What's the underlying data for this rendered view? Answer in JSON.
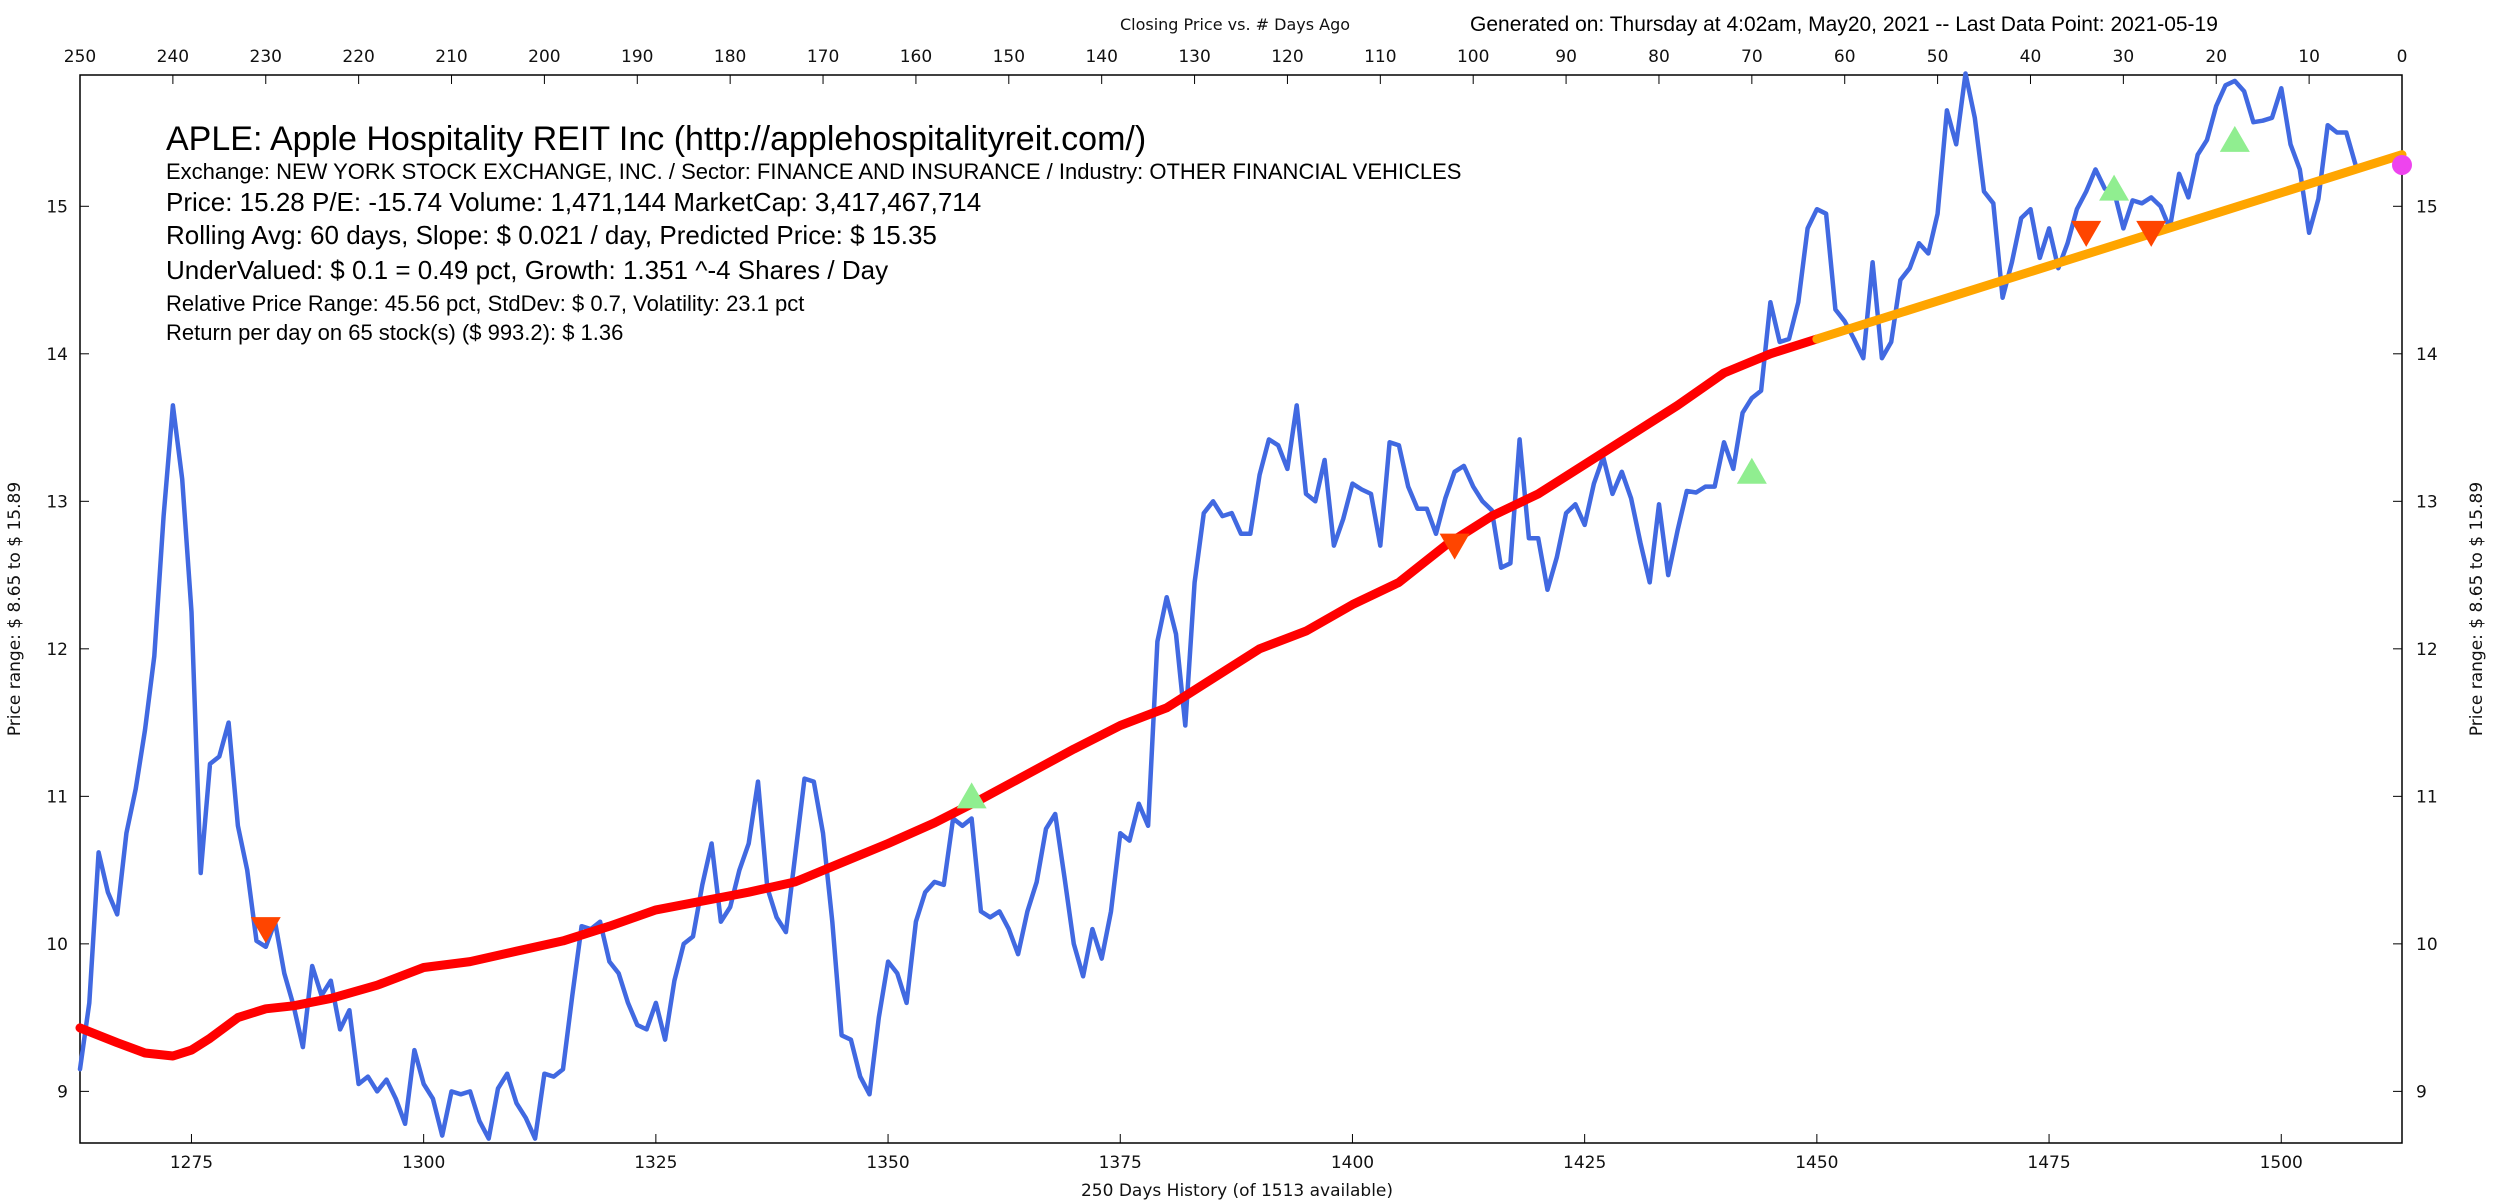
{
  "header": {
    "top_title": "Closing Price vs. # Days Ago",
    "generated": "Generated on:  Thursday at  4:02am, May20, 2021  --  Last Data Point:  2021-05-19"
  },
  "info": {
    "title": "APLE:  Apple Hospitality REIT Inc  (http://applehospitalityreit.com/)",
    "exchange": "Exchange: NEW YORK STOCK EXCHANGE, INC.  /  Sector: FINANCE AND INSURANCE  /  Industry: OTHER FINANCIAL VEHICLES",
    "price": "Price: 15.28  P/E: -15.74 Volume: 1,471,144  MarketCap: 3,417,467,714",
    "rolling": "Rolling Avg: 60 days, Slope: $ 0.021 / day, Predicted Price: $ 15.35",
    "undervalued": "UnderValued: $ 0.1 = 0.49 pct,  Growth: 1.351 ^-4 Shares / Day",
    "range": "Relative Price Range: 45.56 pct, StdDev: $ 0.7, Volatility: 23.1 pct",
    "return": "Return per day on 65 stock(s) ($ 993.2): $ 1.36"
  },
  "axes": {
    "xlabel": "250 Days History (of 1513 available)",
    "ylabel_left": "Price range:  $ 8.65  to  $ 15.89",
    "ylabel_right": "Price range: $ 8.65  to  $ 15.89"
  },
  "colors": {
    "price": "#4169e1",
    "rolling": "#ff0000",
    "projection": "#ffa500",
    "buy": "#90ee90",
    "sell": "#ff4500",
    "current": "#ee44ee"
  },
  "chart_data": {
    "type": "line",
    "title": "Closing Price vs. # Days Ago",
    "xlabel": "250 Days History (of 1513 available)",
    "ylabel": "Price range:  $ 8.65  to  $ 15.89",
    "xlim": [
      1263,
      1513
    ],
    "ylim": [
      8.65,
      15.89
    ],
    "x_ticks": [
      1275,
      1300,
      1325,
      1350,
      1375,
      1400,
      1425,
      1450,
      1475,
      1500
    ],
    "y_ticks": [
      9,
      10,
      11,
      12,
      13,
      14,
      15
    ],
    "top_x_ticks": [
      250,
      240,
      230,
      220,
      210,
      200,
      190,
      180,
      170,
      160,
      150,
      140,
      130,
      120,
      110,
      100,
      90,
      80,
      70,
      60,
      50,
      40,
      30,
      20,
      10,
      0
    ],
    "grid": false,
    "series": [
      {
        "name": "Closing price",
        "style": "line",
        "x_start": 1263,
        "values": [
          9.15,
          9.6,
          10.62,
          10.35,
          10.2,
          10.75,
          11.05,
          11.45,
          11.95,
          12.9,
          13.65,
          13.15,
          12.25,
          10.48,
          11.22,
          11.27,
          11.5,
          10.8,
          10.5,
          10.02,
          9.98,
          10.15,
          9.8,
          9.58,
          9.3,
          9.85,
          9.65,
          9.75,
          9.42,
          9.55,
          9.05,
          9.1,
          9.0,
          9.08,
          8.95,
          8.78,
          9.28,
          9.05,
          8.95,
          8.7,
          9.0,
          8.98,
          9.0,
          8.8,
          8.68,
          9.02,
          9.12,
          8.92,
          8.82,
          8.68,
          9.12,
          9.1,
          9.15,
          9.65,
          10.12,
          10.1,
          10.15,
          9.88,
          9.8,
          9.6,
          9.45,
          9.42,
          9.6,
          9.35,
          9.75,
          10.0,
          10.05,
          10.4,
          10.68,
          10.15,
          10.25,
          10.5,
          10.68,
          11.1,
          10.38,
          10.18,
          10.08,
          10.6,
          11.12,
          11.1,
          10.75,
          10.15,
          9.38,
          9.35,
          9.1,
          8.98,
          9.5,
          9.88,
          9.8,
          9.6,
          10.15,
          10.35,
          10.42,
          10.4,
          10.85,
          10.8,
          10.85,
          10.22,
          10.18,
          10.22,
          10.1,
          9.93,
          10.22,
          10.42,
          10.78,
          10.88,
          10.45,
          10.0,
          9.78,
          10.1,
          9.9,
          10.22,
          10.75,
          10.7,
          10.95,
          10.8,
          12.05,
          12.35,
          12.1,
          11.48,
          12.45,
          12.92,
          13.0,
          12.9,
          12.92,
          12.78,
          12.78,
          13.18,
          13.42,
          13.38,
          13.22,
          13.65,
          13.05,
          13.0,
          13.28,
          12.7,
          12.88,
          13.12,
          13.08,
          13.05,
          12.7,
          13.4,
          13.38,
          13.1,
          12.95,
          12.95,
          12.78,
          13.02,
          13.2,
          13.24,
          13.1,
          13.0,
          12.94,
          12.55,
          12.58,
          13.42,
          12.75,
          12.75,
          12.4,
          12.62,
          12.92,
          12.98,
          12.84,
          13.12,
          13.3,
          13.05,
          13.2,
          13.02,
          12.72,
          12.45,
          12.98,
          12.5,
          12.8,
          13.07,
          13.06,
          13.1,
          13.1,
          13.4,
          13.22,
          13.6,
          13.7,
          13.75,
          14.35,
          14.08,
          14.1,
          14.35,
          14.85,
          14.98,
          14.95,
          14.3,
          14.22,
          14.1,
          13.97,
          14.62,
          13.97,
          14.08,
          14.5,
          14.58,
          14.75,
          14.68,
          14.95,
          15.65,
          15.42,
          15.9,
          15.6,
          15.1,
          15.02,
          14.38,
          14.62,
          14.92,
          14.98,
          14.65,
          14.85,
          14.58,
          14.75,
          14.98,
          15.1,
          15.25,
          15.12,
          15.1,
          14.85,
          15.04,
          15.02,
          15.06,
          15.0,
          14.85,
          15.22,
          15.06,
          15.35,
          15.45,
          15.68,
          15.82,
          15.85,
          15.78,
          15.57,
          15.58,
          15.6,
          15.8,
          15.42,
          15.25,
          14.82,
          15.05,
          15.55,
          15.5,
          15.5,
          15.28
        ]
      },
      {
        "name": "Rolling average (60 days)",
        "style": "line",
        "x": [
          1263,
          1267,
          1270,
          1273,
          1275,
          1277,
          1280,
          1283,
          1286,
          1290,
          1295,
          1300,
          1305,
          1310,
          1315,
          1320,
          1325,
          1330,
          1335,
          1340,
          1345,
          1350,
          1355,
          1360,
          1365,
          1370,
          1375,
          1380,
          1385,
          1390,
          1395,
          1400,
          1405,
          1410,
          1415,
          1420,
          1425,
          1430,
          1435,
          1440,
          1445,
          1450
        ],
        "y": [
          9.43,
          9.33,
          9.26,
          9.24,
          9.28,
          9.36,
          9.5,
          9.56,
          9.58,
          9.63,
          9.72,
          9.84,
          9.88,
          9.95,
          10.02,
          10.12,
          10.23,
          10.29,
          10.35,
          10.42,
          10.55,
          10.68,
          10.82,
          10.98,
          11.15,
          11.32,
          11.48,
          11.6,
          11.8,
          12.0,
          12.12,
          12.3,
          12.45,
          12.7,
          12.9,
          13.05,
          13.25,
          13.45,
          13.65,
          13.87,
          14.0,
          14.1
        ]
      },
      {
        "name": "Projection",
        "style": "line",
        "x": [
          1450,
          1513
        ],
        "y": [
          14.1,
          15.35
        ]
      }
    ],
    "markers": [
      {
        "type": "sell",
        "x": 1283,
        "y": 10.1
      },
      {
        "type": "buy",
        "x": 1359,
        "y": 11.0
      },
      {
        "type": "sell",
        "x": 1411,
        "y": 12.7
      },
      {
        "type": "buy",
        "x": 1443,
        "y": 13.2
      },
      {
        "type": "sell",
        "x": 1479,
        "y": 14.82
      },
      {
        "type": "buy",
        "x": 1482,
        "y": 15.12
      },
      {
        "type": "sell",
        "x": 1486,
        "y": 14.82
      },
      {
        "type": "buy",
        "x": 1495,
        "y": 15.45
      },
      {
        "type": "current",
        "x": 1513,
        "y": 15.28
      }
    ]
  }
}
